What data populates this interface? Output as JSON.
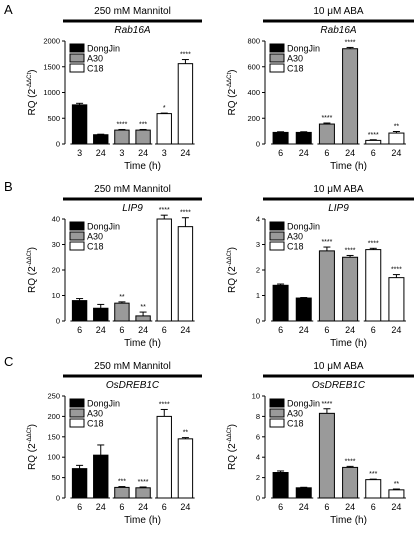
{
  "figure": {
    "background": "#ffffff",
    "series_colors": {
      "DongJin": {
        "fill": "#000000",
        "stroke": "#000000"
      },
      "A30": {
        "fill": "#9a9a9a",
        "stroke": "#000000"
      },
      "C18": {
        "fill": "#ffffff",
        "stroke": "#000000"
      }
    }
  },
  "chart_data": [
    {
      "panel": "A",
      "type": "bar",
      "condition": "250 mM Mannitol",
      "gene": "Rab16A",
      "ylabel": "RQ (2^-ΔΔCt)",
      "xlabel": "Time (h)",
      "ylim": [
        0,
        2000
      ],
      "yticks": [
        0,
        500,
        1000,
        1500,
        2000
      ],
      "ytick_labels": [
        "0",
        "500",
        "1000",
        "1500",
        "2000"
      ],
      "show_legend": true,
      "legend": [
        "DongJin",
        "A30",
        "C18"
      ],
      "series": [
        {
          "name": "DongJin",
          "x": [
            "3",
            "24"
          ],
          "values": [
            760,
            180
          ],
          "errors": [
            30,
            10
          ],
          "sig": [
            "",
            ""
          ]
        },
        {
          "name": "A30",
          "x": [
            "3",
            "24"
          ],
          "values": [
            270,
            270
          ],
          "errors": [
            12,
            12
          ],
          "sig": [
            "****",
            "***"
          ]
        },
        {
          "name": "C18",
          "x": [
            "3",
            "24"
          ],
          "values": [
            590,
            1560
          ],
          "errors": [
            10,
            80
          ],
          "sig": [
            "*",
            "****"
          ]
        }
      ]
    },
    {
      "panel": "A",
      "type": "bar",
      "condition": "10 μM ABA",
      "gene": "Rab16A",
      "ylabel": "RQ (2^-ΔΔCt)",
      "xlabel": "Time (h)",
      "ylim": [
        0,
        800
      ],
      "yticks": [
        0,
        200,
        400,
        600,
        800
      ],
      "ytick_labels": [
        "0",
        "200",
        "400",
        "600",
        "800"
      ],
      "show_legend": true,
      "legend": [
        "DongJin",
        "A30",
        "C18"
      ],
      "series": [
        {
          "name": "DongJin",
          "x": [
            "6",
            "24"
          ],
          "values": [
            90,
            90
          ],
          "errors": [
            5,
            5
          ],
          "sig": [
            "",
            ""
          ]
        },
        {
          "name": "A30",
          "x": [
            "6",
            "24"
          ],
          "values": [
            155,
            740
          ],
          "errors": [
            8,
            10
          ],
          "sig": [
            "****",
            "****"
          ]
        },
        {
          "name": "C18",
          "x": [
            "6",
            "24"
          ],
          "values": [
            28,
            85
          ],
          "errors": [
            5,
            12
          ],
          "sig": [
            "****",
            "**"
          ]
        }
      ]
    },
    {
      "panel": "B",
      "type": "bar",
      "condition": "250 mM Mannitol",
      "gene": "LIP9",
      "ylabel": "RQ (2^-ΔΔCt)",
      "xlabel": "Time (h)",
      "ylim": [
        0,
        40
      ],
      "yticks": [
        0,
        10,
        20,
        30,
        40
      ],
      "ytick_labels": [
        "0",
        "10",
        "20",
        "30",
        "40"
      ],
      "show_legend": true,
      "legend": [
        "DongJin",
        "A30",
        "C18"
      ],
      "series": [
        {
          "name": "DongJin",
          "x": [
            "6",
            "24"
          ],
          "values": [
            8,
            5
          ],
          "errors": [
            0.8,
            1.5
          ],
          "sig": [
            "",
            ""
          ]
        },
        {
          "name": "A30",
          "x": [
            "6",
            "24"
          ],
          "values": [
            7,
            2
          ],
          "errors": [
            0.5,
            1.5
          ],
          "sig": [
            "**",
            "**"
          ]
        },
        {
          "name": "C18",
          "x": [
            "6",
            "24"
          ],
          "values": [
            40,
            37
          ],
          "errors": [
            1.5,
            3.5
          ],
          "sig": [
            "****",
            "****"
          ]
        }
      ]
    },
    {
      "panel": "B",
      "type": "bar",
      "condition": "10 μM ABA",
      "gene": "LIP9",
      "ylabel": "RQ (2^-ΔΔCt)",
      "xlabel": "Time (h)",
      "ylim": [
        0,
        4
      ],
      "yticks": [
        0,
        1,
        2,
        3,
        4
      ],
      "ytick_labels": [
        "0",
        "1",
        "2",
        "3",
        "4"
      ],
      "show_legend": true,
      "legend": [
        "DongJin",
        "A30",
        "C18"
      ],
      "series": [
        {
          "name": "DongJin",
          "x": [
            "6",
            "24"
          ],
          "values": [
            1.4,
            0.9
          ],
          "errors": [
            0.05,
            0.02
          ],
          "sig": [
            "",
            ""
          ]
        },
        {
          "name": "A30",
          "x": [
            "6",
            "24"
          ],
          "values": [
            2.75,
            2.5
          ],
          "errors": [
            0.15,
            0.07
          ],
          "sig": [
            "****",
            "****"
          ]
        },
        {
          "name": "C18",
          "x": [
            "6",
            "24"
          ],
          "values": [
            2.8,
            1.7
          ],
          "errors": [
            0.05,
            0.12
          ],
          "sig": [
            "****",
            "****"
          ]
        }
      ]
    },
    {
      "panel": "C",
      "type": "bar",
      "condition": "250 mM Mannitol",
      "gene": "OsDREB1C",
      "ylabel": "RQ (2^-ΔΔCt)",
      "xlabel": "Time (h)",
      "ylim": [
        0,
        250
      ],
      "yticks": [
        0,
        50,
        100,
        150,
        200,
        250
      ],
      "ytick_labels": [
        "0",
        "50",
        "100",
        "150",
        "200",
        "250"
      ],
      "show_legend": true,
      "legend": [
        "DongJin",
        "A30",
        "C18"
      ],
      "series": [
        {
          "name": "DongJin",
          "x": [
            "6",
            "24"
          ],
          "values": [
            72,
            105
          ],
          "errors": [
            8,
            25
          ],
          "sig": [
            "",
            ""
          ]
        },
        {
          "name": "A30",
          "x": [
            "6",
            "24"
          ],
          "values": [
            26,
            25
          ],
          "errors": [
            2,
            2
          ],
          "sig": [
            "***",
            "****"
          ]
        },
        {
          "name": "C18",
          "x": [
            "6",
            "24"
          ],
          "values": [
            200,
            145
          ],
          "errors": [
            17,
            3
          ],
          "sig": [
            "****",
            "**"
          ]
        }
      ]
    },
    {
      "panel": "C",
      "type": "bar",
      "condition": "10 μM ABA",
      "gene": "OsDREB1C",
      "ylabel": "RQ (2^-ΔΔCt)",
      "xlabel": "Time (h)",
      "ylim": [
        0,
        10
      ],
      "yticks": [
        0,
        2,
        4,
        6,
        8,
        10
      ],
      "ytick_labels": [
        "0",
        "2",
        "4",
        "6",
        "8",
        "10"
      ],
      "show_legend": true,
      "legend": [
        "DongJin",
        "A30",
        "C18"
      ],
      "series": [
        {
          "name": "DongJin",
          "x": [
            "6",
            "24"
          ],
          "values": [
            2.5,
            1.0
          ],
          "errors": [
            0.15,
            0.05
          ],
          "sig": [
            "",
            ""
          ]
        },
        {
          "name": "A30",
          "x": [
            "6",
            "24"
          ],
          "values": [
            8.3,
            3.0
          ],
          "errors": [
            0.45,
            0.1
          ],
          "sig": [
            "****",
            "****"
          ]
        },
        {
          "name": "C18",
          "x": [
            "6",
            "24"
          ],
          "values": [
            1.8,
            0.8
          ],
          "errors": [
            0.05,
            0.08
          ],
          "sig": [
            "***",
            "**"
          ]
        }
      ]
    }
  ]
}
